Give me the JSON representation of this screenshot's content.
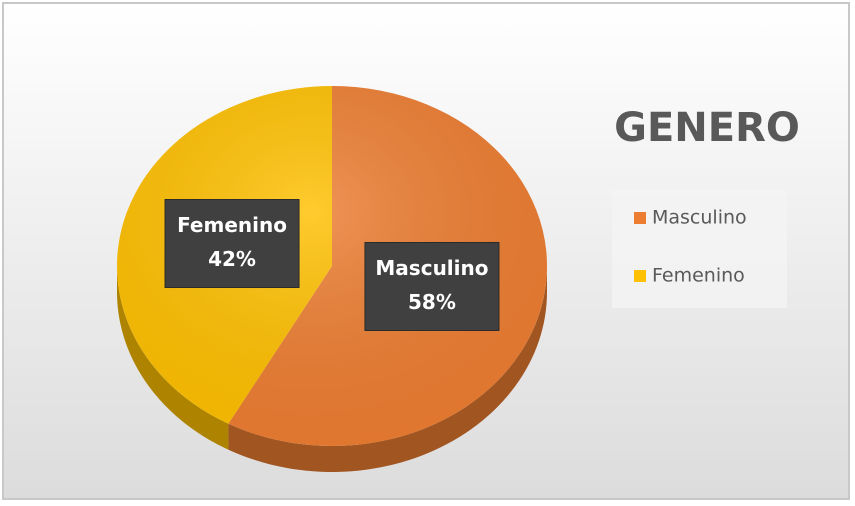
{
  "chart_data": {
    "type": "pie",
    "title": "GENERO",
    "categories": [
      "Masculino",
      "Femenino"
    ],
    "values": [
      58,
      42
    ],
    "value_labels": [
      "58%",
      "42%"
    ],
    "colors": [
      "#ED7D31",
      "#FFC000"
    ],
    "legend": "right"
  }
}
